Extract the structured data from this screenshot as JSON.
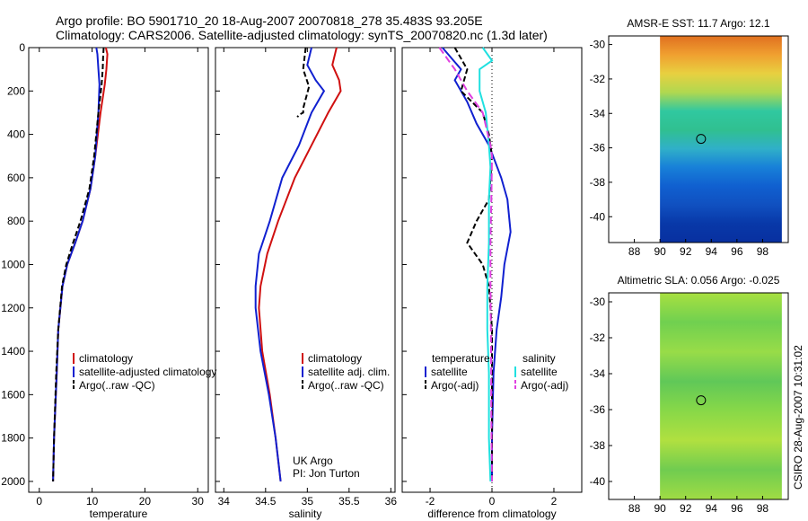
{
  "header": {
    "line1": "Argo profile: BO 5901710_20 18-Aug-2007 20070818_278 35.483S 93.205E",
    "line2": "Climatology: CARS2006. Satellite-adjusted climatology: synTS_20070820.nc (1.3d later)"
  },
  "credit": "CSIRO 28-Aug-2007 10:31:02",
  "chart_data": [
    {
      "type": "line",
      "xlabel": "temperature",
      "ylabel": "",
      "xlim": [
        -2,
        32
      ],
      "ylim": [
        2050,
        0
      ],
      "xticks": [
        0,
        10,
        20,
        30
      ],
      "yticks": [
        0,
        200,
        400,
        600,
        800,
        1000,
        1200,
        1400,
        1600,
        1800,
        2000
      ],
      "legend": "lower-right",
      "series": [
        {
          "name": "climatology",
          "color": "#d01010",
          "dash": "",
          "x": [
            12.6,
            12.9,
            12.7,
            12.4,
            11.6,
            10.6,
            9.7,
            8.2,
            6.8,
            5.3,
            4.4,
            3.6,
            3.3,
            2.8,
            2.6
          ],
          "y": [
            0,
            30,
            100,
            170,
            300,
            500,
            650,
            800,
            900,
            1000,
            1100,
            1300,
            1500,
            1800,
            2000
          ]
        },
        {
          "name": "satellite-adjusted climatology",
          "color": "#1020d0",
          "dash": "",
          "x": [
            10.8,
            11.0,
            11.2,
            11.4,
            11.2,
            10.6,
            9.7,
            8.2,
            6.8,
            5.3,
            4.4,
            3.6,
            3.3,
            2.8,
            2.6
          ],
          "y": [
            0,
            30,
            100,
            170,
            300,
            500,
            650,
            800,
            900,
            1000,
            1100,
            1300,
            1500,
            1800,
            2000
          ]
        },
        {
          "name": "Argo(..raw -QC)",
          "color": "#000000",
          "dash": "6,3",
          "x": [
            12.2,
            12.1,
            12.0,
            11.8,
            11.2,
            10.4,
            9.5,
            7.8,
            6.4,
            5.1,
            4.3,
            3.6,
            3.2,
            2.8,
            2.6
          ],
          "y": [
            0,
            40,
            100,
            170,
            300,
            500,
            650,
            800,
            900,
            1000,
            1100,
            1300,
            1500,
            1800,
            2000
          ]
        }
      ]
    },
    {
      "type": "line",
      "xlabel": "salinity",
      "ylabel": "",
      "xlim": [
        33.9,
        36.05
      ],
      "ylim": [
        2050,
        0
      ],
      "xticks": [
        34,
        34.5,
        35,
        35.5,
        36
      ],
      "yticks": [],
      "legend": "lower-right",
      "series": [
        {
          "name": "climatology",
          "color": "#d01010",
          "dash": "",
          "x": [
            35.35,
            35.3,
            35.38,
            35.4,
            35.25,
            35.05,
            34.85,
            34.65,
            34.52,
            34.44,
            34.42,
            34.46,
            34.55,
            34.62,
            34.68
          ],
          "y": [
            0,
            80,
            150,
            200,
            300,
            450,
            600,
            800,
            950,
            1100,
            1200,
            1400,
            1600,
            1800,
            2000
          ]
        },
        {
          "name": "satellite adj. clim.",
          "color": "#1020d0",
          "dash": "",
          "x": [
            35.05,
            35.0,
            35.1,
            35.2,
            35.05,
            34.9,
            34.7,
            34.55,
            34.42,
            34.38,
            34.38,
            34.44,
            34.54,
            34.62,
            34.68
          ],
          "y": [
            0,
            80,
            150,
            200,
            300,
            450,
            600,
            800,
            950,
            1100,
            1200,
            1400,
            1600,
            1800,
            2000
          ]
        },
        {
          "name": "Argo(..raw -QC)",
          "color": "#000000",
          "dash": "6,3",
          "x": [
            34.98,
            34.95,
            35.02,
            34.95,
            34.95,
            34.9,
            34.88
          ],
          "y": [
            0,
            100,
            180,
            280,
            300,
            310,
            320
          ]
        }
      ]
    },
    {
      "type": "line",
      "xlabel": "difference from climatology",
      "ylabel": "",
      "xlim": [
        -2.9,
        2.9
      ],
      "ylim": [
        2050,
        0
      ],
      "xticks": [
        -2,
        0,
        2
      ],
      "yticks": [],
      "legend": "lower-center",
      "legend_groups": [
        "temperature",
        "salinity"
      ],
      "series": [
        {
          "name": "satellite",
          "group": "temperature",
          "color": "#1020d0",
          "dash": "",
          "x": [
            -1.6,
            -1.0,
            -1.2,
            -0.8,
            -0.5,
            -0.1,
            0.3,
            0.5,
            0.6,
            0.4,
            0.3,
            0.15,
            0.05,
            0.0,
            0.0
          ],
          "y": [
            0,
            100,
            150,
            250,
            350,
            450,
            600,
            700,
            850,
            1000,
            1150,
            1300,
            1500,
            1800,
            2000
          ]
        },
        {
          "name": "Argo(-adj)",
          "group": "temperature",
          "color": "#000000",
          "dash": "6,3",
          "x": [
            -1.2,
            -0.8,
            -1.0,
            -0.3,
            -0.1,
            0.0,
            -0.1,
            -0.5,
            -0.8,
            -0.3,
            -0.1,
            0.0,
            0.0,
            0.0
          ],
          "y": [
            0,
            100,
            200,
            300,
            400,
            500,
            700,
            800,
            900,
            1000,
            1100,
            1300,
            1600,
            2000
          ]
        },
        {
          "name": "satellite",
          "group": "salinity",
          "color": "#20e0e0",
          "dash": "",
          "x": [
            -0.3,
            0.0,
            -0.4,
            -0.4,
            -0.2,
            -0.1,
            -0.05,
            -0.1,
            -0.1,
            -0.15,
            -0.15,
            -0.1,
            -0.1,
            -0.05
          ],
          "y": [
            0,
            60,
            100,
            200,
            300,
            450,
            550,
            700,
            900,
            1100,
            1300,
            1500,
            1800,
            2000
          ]
        },
        {
          "name": "Argo(-adj)",
          "group": "salinity",
          "color": "#e040e0",
          "dash": "8,4",
          "x": [
            -1.7,
            -1.2,
            -0.8,
            -0.3,
            -0.05,
            0.0,
            -0.02,
            -0.05,
            -0.05,
            -0.03,
            -0.02,
            0.0
          ],
          "y": [
            0,
            100,
            200,
            300,
            450,
            500,
            700,
            900,
            1100,
            1400,
            1700,
            2000
          ]
        }
      ],
      "vline": {
        "x": 0,
        "style": "dotted"
      }
    },
    {
      "type": "heatmap",
      "title": "AMSR-E SST: 11.7 Argo: 12.1",
      "xlim": [
        86,
        100
      ],
      "ylim": [
        -41.5,
        -29.5
      ],
      "xticks": [
        88,
        90,
        92,
        94,
        96,
        98
      ],
      "xtick_labels": [
        "88",
        "90",
        "92",
        "94",
        "96",
        "98"
      ],
      "yticks": [
        -30,
        -32,
        -34,
        -36,
        -38,
        -40
      ],
      "ytick_labels": [
        "-30",
        "-32",
        "-34",
        "-36",
        "-38",
        "-40"
      ],
      "data_lon_range": [
        90,
        99.5
      ],
      "marker": {
        "lon": 93.2,
        "lat": -35.48
      },
      "bands": [
        {
          "lat": -30.0,
          "color": "#e07020"
        },
        {
          "lat": -31.0,
          "color": "#f0a030"
        },
        {
          "lat": -32.0,
          "color": "#e8d040"
        },
        {
          "lat": -33.0,
          "color": "#b0d850"
        },
        {
          "lat": -34.0,
          "color": "#30c8a0"
        },
        {
          "lat": -35.0,
          "color": "#30c090"
        },
        {
          "lat": -36.0,
          "color": "#30b0c8"
        },
        {
          "lat": -37.0,
          "color": "#1880d8"
        },
        {
          "lat": -38.0,
          "color": "#1060d0"
        },
        {
          "lat": -39.0,
          "color": "#1050c0"
        },
        {
          "lat": -40.0,
          "color": "#0838a8"
        },
        {
          "lat": -41.0,
          "color": "#0830a0"
        }
      ]
    },
    {
      "type": "heatmap",
      "title": "Altimetric SLA: 0.056 Argo: -0.025",
      "xlim": [
        86,
        100
      ],
      "ylim": [
        -41,
        -29.5
      ],
      "xticks": [
        88,
        90,
        92,
        94,
        96,
        98
      ],
      "xtick_labels": [
        "88",
        "90",
        "92",
        "94",
        "96",
        "98"
      ],
      "yticks": [
        -30,
        -32,
        -34,
        -36,
        -38,
        -40
      ],
      "ytick_labels": [
        "-30",
        "-32",
        "-34",
        "-36",
        "-38",
        "-40"
      ],
      "data_lon_range": [
        90,
        99.5
      ],
      "marker": {
        "lon": 93.2,
        "lat": -35.48
      },
      "bands": [
        {
          "lat": -30.0,
          "color": "#a8e040"
        },
        {
          "lat": -31.5,
          "color": "#70d050"
        },
        {
          "lat": -33.0,
          "color": "#98dc48"
        },
        {
          "lat": -34.5,
          "color": "#60c858"
        },
        {
          "lat": -36.0,
          "color": "#88d848"
        },
        {
          "lat": -37.5,
          "color": "#b0e040"
        },
        {
          "lat": -39.0,
          "color": "#70cc50"
        },
        {
          "lat": -40.5,
          "color": "#a0dc44"
        }
      ]
    }
  ],
  "notes": {
    "sal_text1": "UK Argo",
    "sal_text2": "PI: Jon Turton"
  }
}
